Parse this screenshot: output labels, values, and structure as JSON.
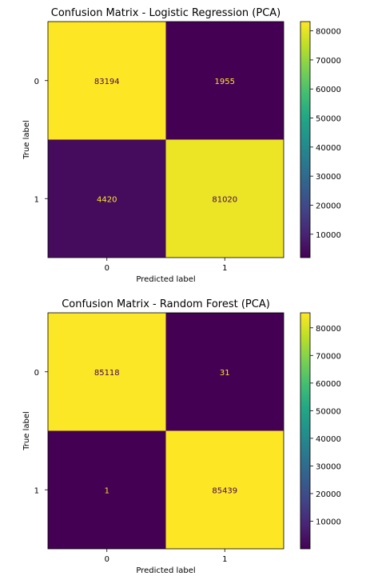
{
  "chart_data": [
    {
      "type": "heatmap",
      "title": "Confusion Matrix - Logistic Regression (PCA)",
      "xlabel": "Predicted label",
      "ylabel": "True label",
      "x_categories": [
        "0",
        "1"
      ],
      "y_categories": [
        "0",
        "1"
      ],
      "values": [
        [
          83194,
          1955
        ],
        [
          4420,
          81020
        ]
      ],
      "colormap": "viridis",
      "colorbar": {
        "min": 1955,
        "max": 83194,
        "ticks": [
          10000,
          20000,
          30000,
          40000,
          50000,
          60000,
          70000,
          80000
        ],
        "tick_labels": [
          "10000",
          "20000",
          "30000",
          "40000",
          "50000",
          "60000",
          "70000",
          "80000"
        ]
      }
    },
    {
      "type": "heatmap",
      "title": "Confusion Matrix - Random Forest (PCA)",
      "xlabel": "Predicted label",
      "ylabel": "True label",
      "x_categories": [
        "0",
        "1"
      ],
      "y_categories": [
        "0",
        "1"
      ],
      "values": [
        [
          85118,
          31
        ],
        [
          1,
          85439
        ]
      ],
      "colormap": "viridis",
      "colorbar": {
        "min": 1,
        "max": 85439,
        "ticks": [
          10000,
          20000,
          30000,
          40000,
          50000,
          60000,
          70000,
          80000
        ],
        "tick_labels": [
          "10000",
          "20000",
          "30000",
          "40000",
          "50000",
          "60000",
          "70000",
          "80000"
        ]
      }
    }
  ],
  "colors": {
    "viridis_low": "#440154",
    "viridis_high": "#fde725",
    "text_on_dark": "#fde725",
    "text_on_light": "#440154"
  }
}
